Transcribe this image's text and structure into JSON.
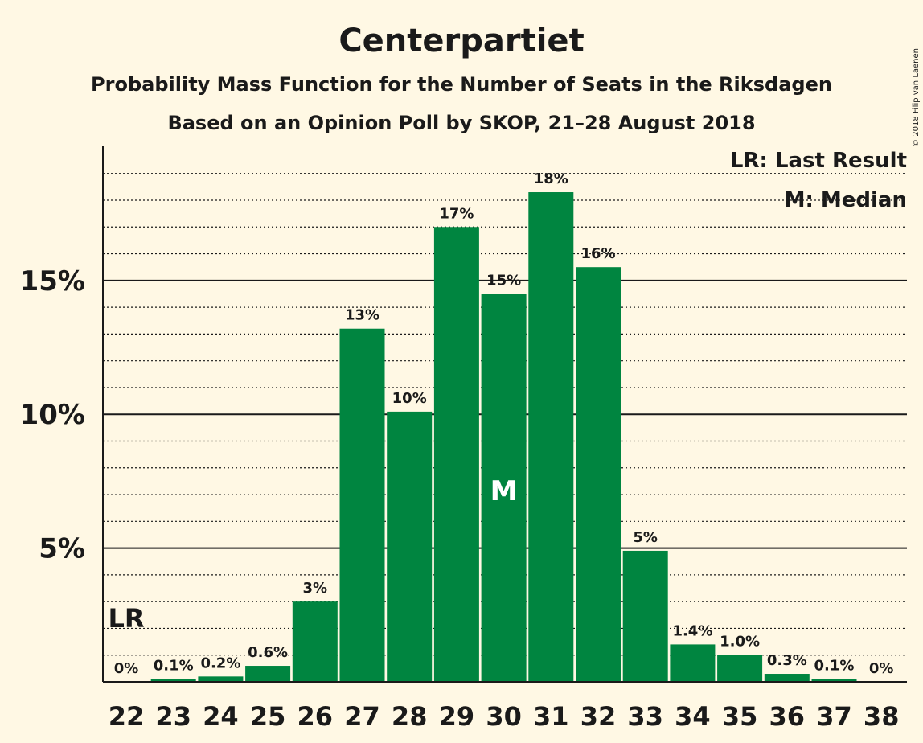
{
  "chart_data": {
    "type": "bar",
    "title": "Centerpartiet",
    "subtitle_lines": [
      "Probability Mass Function for the Number of Seats in the Riksdagen",
      "Based on an Opinion Poll by SKOP, 21–28 August 2018"
    ],
    "categories": [
      "22",
      "23",
      "24",
      "25",
      "26",
      "27",
      "28",
      "29",
      "30",
      "31",
      "32",
      "33",
      "34",
      "35",
      "36",
      "37",
      "38"
    ],
    "values": [
      0,
      0.1,
      0.2,
      0.6,
      3.0,
      13.2,
      10.1,
      17.0,
      14.5,
      18.3,
      15.5,
      4.9,
      1.4,
      1.0,
      0.3,
      0.1,
      0
    ],
    "data_labels": [
      "0%",
      "0.1%",
      "0.2%",
      "0.6%",
      "3%",
      "13%",
      "10%",
      "17%",
      "15%",
      "18%",
      "16%",
      "5%",
      "1.4%",
      "1.0%",
      "0.3%",
      "0.1%",
      "0%"
    ],
    "ylim": [
      0,
      20
    ],
    "yticks": [
      5,
      10,
      15
    ],
    "ytick_labels": [
      "5%",
      "10%",
      "15%"
    ],
    "minor_grid_step": 1,
    "last_result_seat": "22",
    "median_seat": "30",
    "last_result_marker": "LR",
    "median_marker": "M",
    "legend": [
      "LR: Last Result",
      "M: Median"
    ],
    "legend_position": "top-right",
    "copyright": "© 2018 Filip van Laenen",
    "colors": {
      "bar": "#008540",
      "background": "#fff8e4",
      "text": "#1a1a1a",
      "median_text": "#ffffff"
    }
  }
}
